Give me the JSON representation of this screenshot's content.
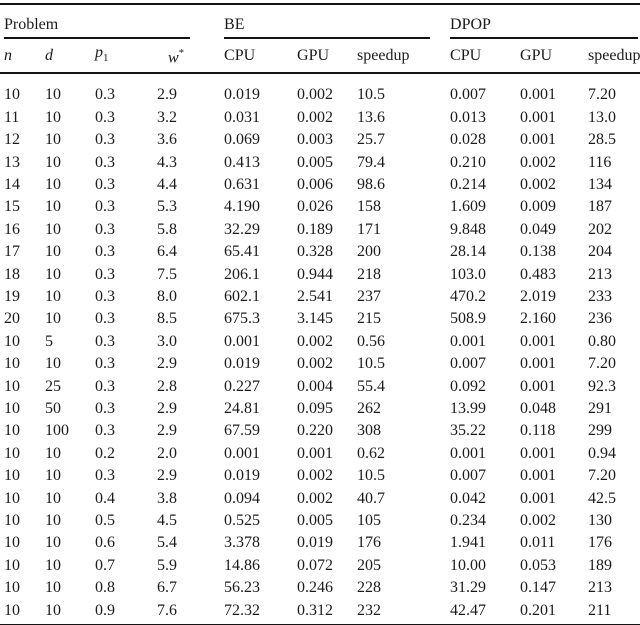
{
  "page": {
    "background": "#ffffff",
    "text_color": "#1b1b1b",
    "rule_color": "#141414"
  },
  "table": {
    "groups": [
      {
        "label": "Problem"
      },
      {
        "label": "BE"
      },
      {
        "label": "DPOP"
      }
    ],
    "columns": [
      {
        "label": "n"
      },
      {
        "label": "d"
      },
      {
        "label": "p",
        "sub": "1"
      },
      {
        "label": "w",
        "sup": "*"
      },
      {
        "label": "CPU"
      },
      {
        "label": "GPU"
      },
      {
        "label": "speedup"
      },
      {
        "label": "CPU"
      },
      {
        "label": "GPU"
      },
      {
        "label": "speedup"
      }
    ],
    "rows": [
      [
        "10",
        "10",
        "0.3",
        "2.9",
        "0.019",
        "0.002",
        "10.5",
        "0.007",
        "0.001",
        "7.20"
      ],
      [
        "11",
        "10",
        "0.3",
        "3.2",
        "0.031",
        "0.002",
        "13.6",
        "0.013",
        "0.001",
        "13.0"
      ],
      [
        "12",
        "10",
        "0.3",
        "3.6",
        "0.069",
        "0.003",
        "25.7",
        "0.028",
        "0.001",
        "28.5"
      ],
      [
        "13",
        "10",
        "0.3",
        "4.3",
        "0.413",
        "0.005",
        "79.4",
        "0.210",
        "0.002",
        "116"
      ],
      [
        "14",
        "10",
        "0.3",
        "4.4",
        "0.631",
        "0.006",
        "98.6",
        "0.214",
        "0.002",
        "134"
      ],
      [
        "15",
        "10",
        "0.3",
        "5.3",
        "4.190",
        "0.026",
        "158",
        "1.609",
        "0.009",
        "187"
      ],
      [
        "16",
        "10",
        "0.3",
        "5.8",
        "32.29",
        "0.189",
        "171",
        "9.848",
        "0.049",
        "202"
      ],
      [
        "17",
        "10",
        "0.3",
        "6.4",
        "65.41",
        "0.328",
        "200",
        "28.14",
        "0.138",
        "204"
      ],
      [
        "18",
        "10",
        "0.3",
        "7.5",
        "206.1",
        "0.944",
        "218",
        "103.0",
        "0.483",
        "213"
      ],
      [
        "19",
        "10",
        "0.3",
        "8.0",
        "602.1",
        "2.541",
        "237",
        "470.2",
        "2.019",
        "233"
      ],
      [
        "20",
        "10",
        "0.3",
        "8.5",
        "675.3",
        "3.145",
        "215",
        "508.9",
        "2.160",
        "236"
      ],
      [
        "10",
        "5",
        "0.3",
        "3.0",
        "0.001",
        "0.002",
        "0.56",
        "0.001",
        "0.001",
        "0.80"
      ],
      [
        "10",
        "10",
        "0.3",
        "2.9",
        "0.019",
        "0.002",
        "10.5",
        "0.007",
        "0.001",
        "7.20"
      ],
      [
        "10",
        "25",
        "0.3",
        "2.8",
        "0.227",
        "0.004",
        "55.4",
        "0.092",
        "0.001",
        "92.3"
      ],
      [
        "10",
        "50",
        "0.3",
        "2.9",
        "24.81",
        "0.095",
        "262",
        "13.99",
        "0.048",
        "291"
      ],
      [
        "10",
        "100",
        "0.3",
        "2.9",
        "67.59",
        "0.220",
        "308",
        "35.22",
        "0.118",
        "299"
      ],
      [
        "10",
        "10",
        "0.2",
        "2.0",
        "0.001",
        "0.001",
        "0.62",
        "0.001",
        "0.001",
        "0.94"
      ],
      [
        "10",
        "10",
        "0.3",
        "2.9",
        "0.019",
        "0.002",
        "10.5",
        "0.007",
        "0.001",
        "7.20"
      ],
      [
        "10",
        "10",
        "0.4",
        "3.8",
        "0.094",
        "0.002",
        "40.7",
        "0.042",
        "0.001",
        "42.5"
      ],
      [
        "10",
        "10",
        "0.5",
        "4.5",
        "0.525",
        "0.005",
        "105",
        "0.234",
        "0.002",
        "130"
      ],
      [
        "10",
        "10",
        "0.6",
        "5.4",
        "3.378",
        "0.019",
        "176",
        "1.941",
        "0.011",
        "176"
      ],
      [
        "10",
        "10",
        "0.7",
        "5.9",
        "14.86",
        "0.072",
        "205",
        "10.00",
        "0.053",
        "189"
      ],
      [
        "10",
        "10",
        "0.8",
        "6.7",
        "56.23",
        "0.246",
        "228",
        "31.29",
        "0.147",
        "213"
      ],
      [
        "10",
        "10",
        "0.9",
        "7.6",
        "72.32",
        "0.312",
        "232",
        "42.47",
        "0.201",
        "211"
      ]
    ]
  }
}
